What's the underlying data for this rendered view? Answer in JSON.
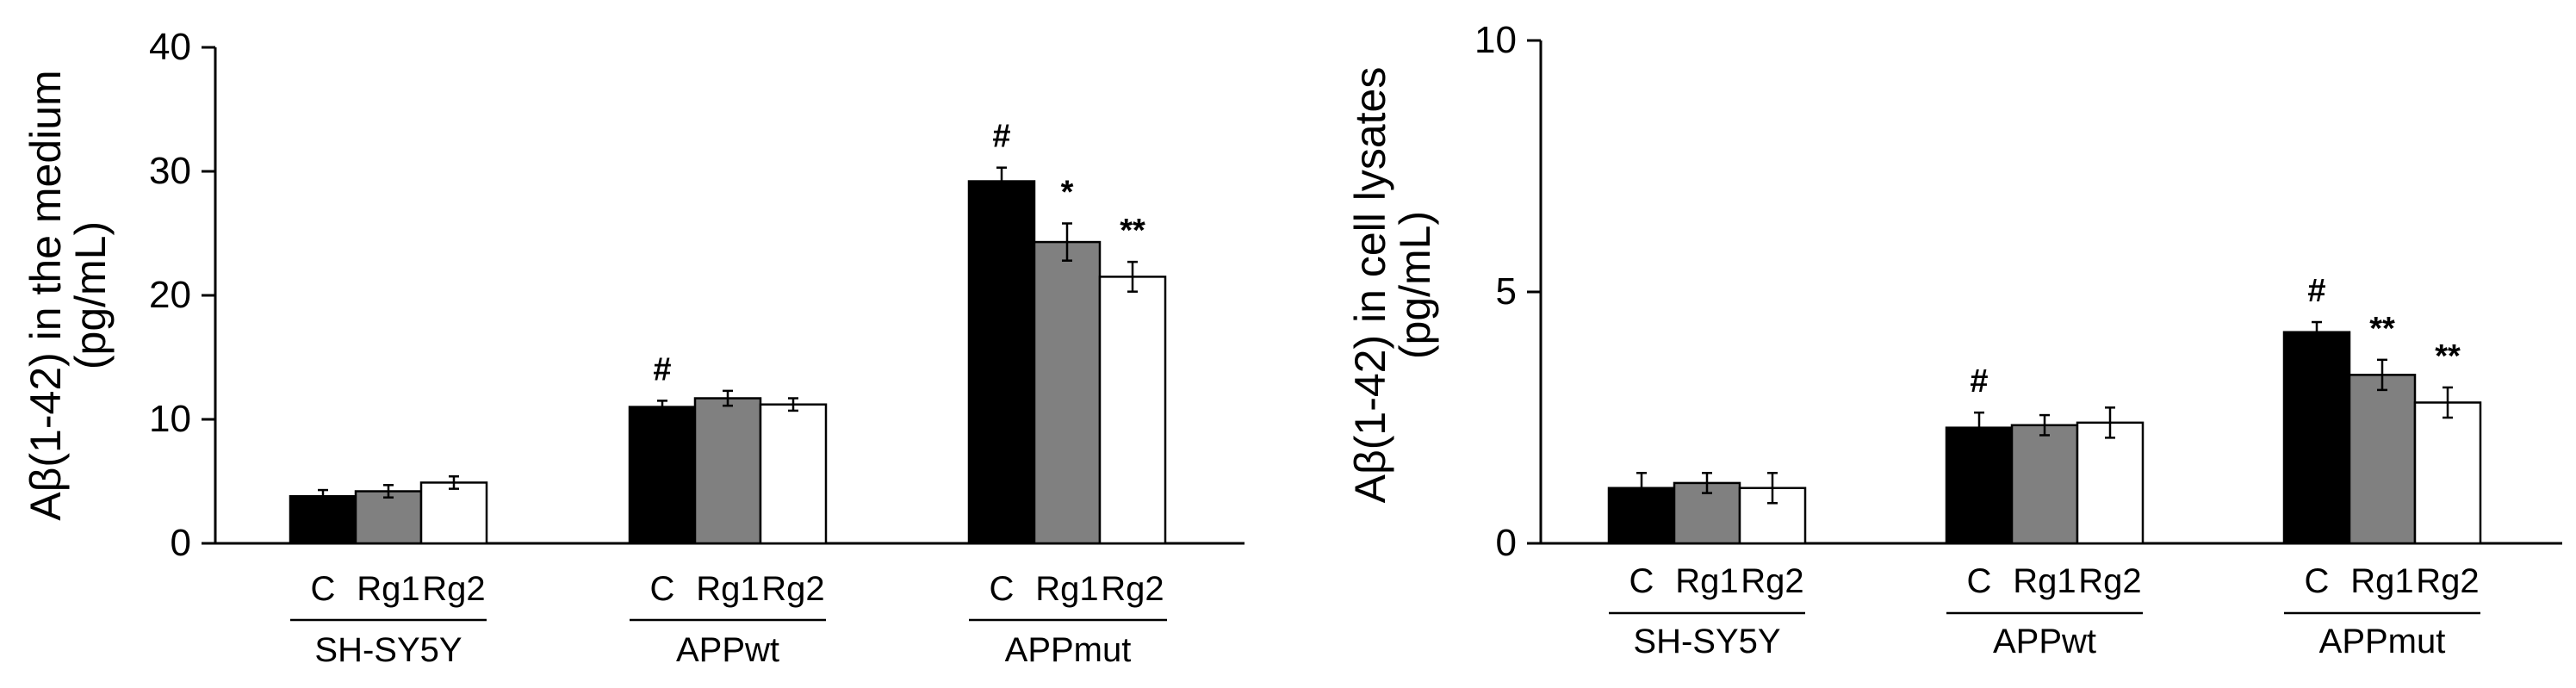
{
  "chart_data": [
    {
      "type": "bar",
      "ylabel_line1": "Aβ(1-42) in the medium",
      "ylabel_line2": "(pg/mL)",
      "ylim": [
        0,
        40
      ],
      "yticks": [
        0,
        10,
        20,
        30,
        40
      ],
      "series_labels": [
        "C",
        "Rg1",
        "Rg2"
      ],
      "series_colors": [
        "#000000",
        "#808080",
        "#ffffff"
      ],
      "groups": [
        {
          "name": "SH-SY5Y",
          "values": [
            3.8,
            4.2,
            4.9
          ],
          "errors": [
            0.5,
            0.5,
            0.5
          ],
          "marks": [
            "",
            "",
            ""
          ]
        },
        {
          "name": "APPwt",
          "values": [
            11.0,
            11.7,
            11.2
          ],
          "errors": [
            0.5,
            0.6,
            0.5
          ],
          "marks": [
            "#",
            "",
            ""
          ]
        },
        {
          "name": "APPmut",
          "values": [
            29.2,
            24.3,
            21.5
          ],
          "errors": [
            1.1,
            1.5,
            1.2
          ],
          "marks": [
            "#",
            "*",
            "**"
          ]
        }
      ]
    },
    {
      "type": "bar",
      "ylabel_line1": "Aβ(1-42) in cell lysates",
      "ylabel_line2": "(pg/mL)",
      "ylim": [
        0,
        10
      ],
      "yticks": [
        0,
        5,
        10
      ],
      "series_labels": [
        "C",
        "Rg1",
        "Rg2"
      ],
      "series_colors": [
        "#000000",
        "#808080",
        "#ffffff"
      ],
      "groups": [
        {
          "name": "SH-SY5Y",
          "values": [
            1.1,
            1.2,
            1.1
          ],
          "errors": [
            0.3,
            0.2,
            0.3
          ],
          "marks": [
            "",
            "",
            ""
          ]
        },
        {
          "name": "APPwt",
          "values": [
            2.3,
            2.35,
            2.4
          ],
          "errors": [
            0.3,
            0.2,
            0.3
          ],
          "marks": [
            "#",
            "",
            ""
          ]
        },
        {
          "name": "APPmut",
          "values": [
            4.2,
            3.35,
            2.8
          ],
          "errors": [
            0.2,
            0.3,
            0.3
          ],
          "marks": [
            "#",
            "**",
            "**"
          ]
        }
      ]
    }
  ]
}
